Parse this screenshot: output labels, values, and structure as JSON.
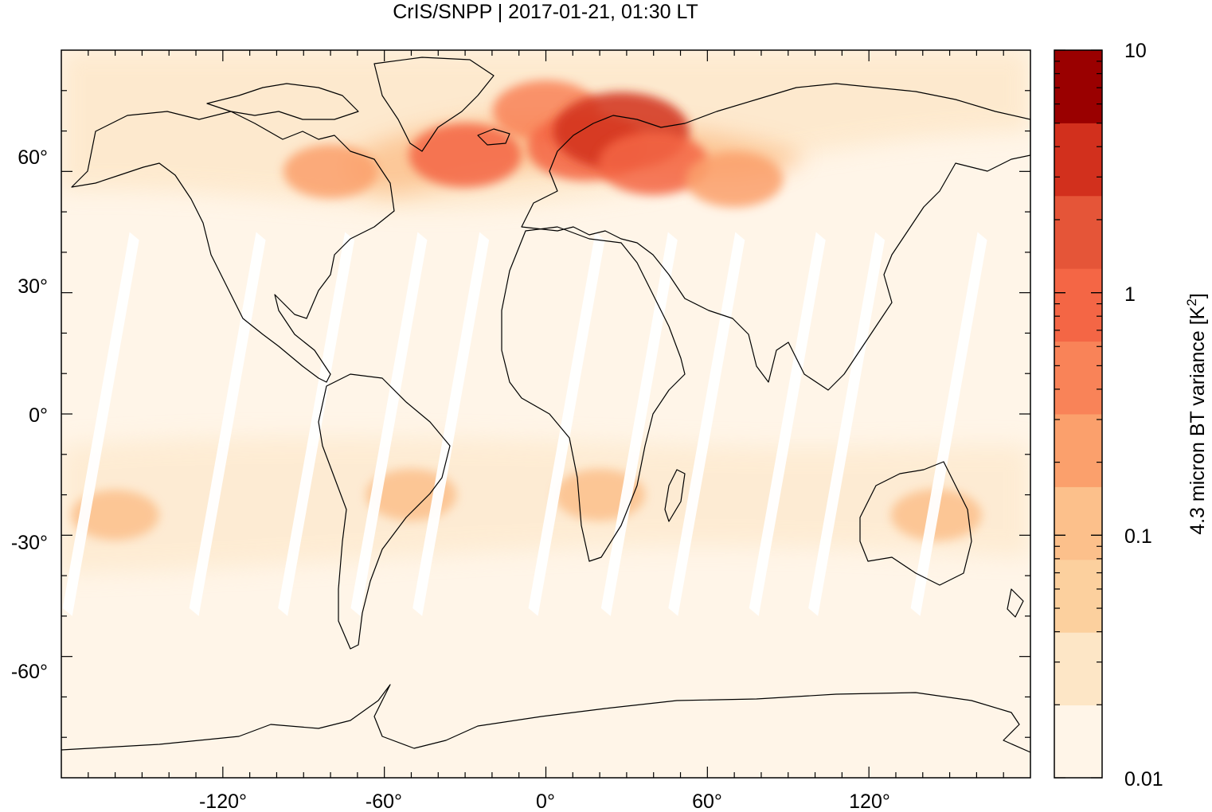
{
  "title": "CrIS/SNPP | 2017-01-21, 01:30 LT",
  "map": {
    "lon_range": [
      -180,
      180
    ],
    "lat_range": [
      -90,
      90
    ],
    "x_ticks": [
      -120,
      -60,
      0,
      60,
      120
    ],
    "y_ticks": [
      60,
      30,
      0,
      -30,
      -60
    ],
    "x_tick_labels": [
      "-120°",
      "-60°",
      "0°",
      "60°",
      "120°"
    ],
    "y_tick_labels": [
      "60°",
      "30°",
      "0°",
      "-30°",
      "-60°"
    ]
  },
  "colorbar": {
    "label": "4.3 micron BT variance [K²]",
    "label_main": "4.3 micron BT variance [K",
    "label_sup": "2",
    "label_end": "]",
    "scale": "log",
    "range": [
      0.01,
      10
    ],
    "tick_labels": [
      "10",
      "1",
      "0.1",
      "0.01"
    ],
    "tick_values": [
      10,
      1,
      0.1,
      0.01
    ],
    "colors": [
      "#fff5e8",
      "#fde6c6",
      "#fcd09e",
      "#fcc08b",
      "#fba06c",
      "#f98358",
      "#f46645",
      "#e55538",
      "#d2301d",
      "#9a0000"
    ]
  },
  "hotspots": [
    {
      "lon": 0,
      "lat": 75,
      "value": 0.5
    },
    {
      "lon": 15,
      "lat": 66,
      "value": 1.2
    },
    {
      "lon": 28,
      "lat": 70,
      "value": 5
    },
    {
      "lon": -30,
      "lat": 64,
      "value": 0.8
    },
    {
      "lon": 40,
      "lat": 62,
      "value": 0.7
    },
    {
      "lon": 70,
      "lat": 58,
      "value": 0.25
    },
    {
      "lon": -80,
      "lat": 60,
      "value": 0.2
    },
    {
      "lon": 145,
      "lat": -25,
      "value": 0.15
    },
    {
      "lon": 20,
      "lat": -20,
      "value": 0.15
    },
    {
      "lon": -50,
      "lat": -20,
      "value": 0.15
    },
    {
      "lon": -160,
      "lat": -25,
      "value": 0.12
    }
  ]
}
